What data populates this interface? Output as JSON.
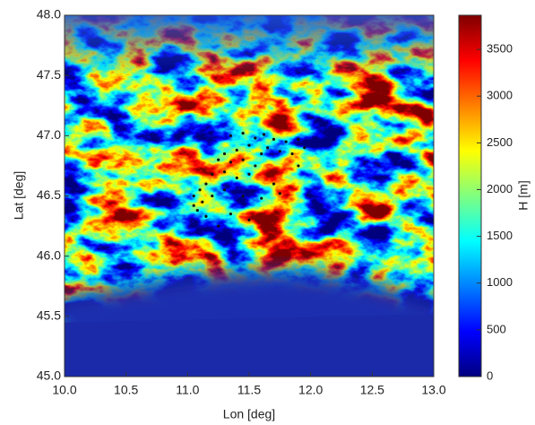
{
  "chart_data": {
    "type": "scatter",
    "xlabel": "Lon [deg]",
    "ylabel": "Lat [deg]",
    "xlim": [
      10,
      13
    ],
    "ylim": [
      45,
      48
    ],
    "xticks": [
      {
        "value": 10,
        "label": "10.0"
      },
      10.5,
      {
        "value": 11,
        "label": "11.0"
      },
      11.5,
      {
        "value": 12,
        "label": "12.0"
      },
      12.5,
      {
        "value": 13,
        "label": "13.0"
      }
    ],
    "yticks": [
      {
        "value": 45,
        "label": "45.0"
      },
      45.5,
      {
        "value": 46,
        "label": "46.0"
      },
      46.5,
      {
        "value": 47,
        "label": "47.0"
      },
      47.5,
      {
        "value": 48,
        "label": "48.0"
      }
    ],
    "color": "#111111",
    "x": [
      11.35,
      11.45,
      11.55,
      11.62,
      11.7,
      11.8,
      11.9,
      11.95,
      11.85,
      11.75,
      11.65,
      11.5,
      11.4,
      11.3,
      11.25,
      11.35,
      11.45,
      11.55,
      11.5,
      11.4,
      11.3,
      11.2,
      11.15,
      11.1,
      11.05,
      11.12,
      11.08,
      11.15,
      11.05,
      11.2,
      11.3,
      11.45,
      11.6,
      11.75,
      11.35,
      11.25,
      11.5,
      11.7,
      11.9,
      11.6
    ],
    "y": [
      47.0,
      47.02,
      46.98,
      47.01,
      46.97,
      46.95,
      46.97,
      46.9,
      46.85,
      46.87,
      46.9,
      46.92,
      46.88,
      46.85,
      46.8,
      46.78,
      46.8,
      46.75,
      46.68,
      46.65,
      46.7,
      46.68,
      46.6,
      46.55,
      46.5,
      46.45,
      46.38,
      46.33,
      46.42,
      46.5,
      46.55,
      46.5,
      46.48,
      46.52,
      46.35,
      46.25,
      46.3,
      46.6,
      46.75,
      46.85
    ],
    "colorbar": {
      "label": "H [m]",
      "lim": [
        0,
        3865
      ],
      "ticks": [
        0,
        500,
        1000,
        1500,
        2000,
        2500,
        3000,
        3500
      ]
    }
  }
}
